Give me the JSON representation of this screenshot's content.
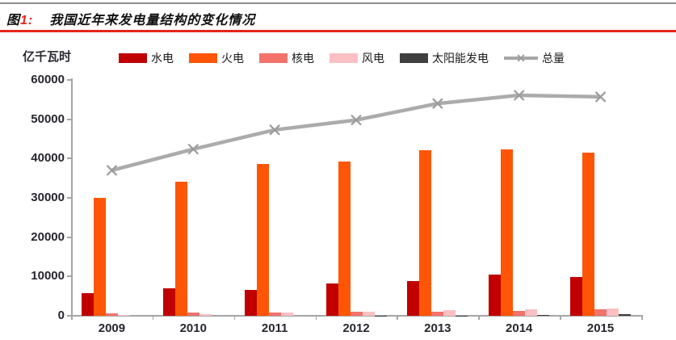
{
  "header": {
    "figure_label": "图",
    "figure_number": "1:",
    "title": "我国近年来发电量结构的变化情况"
  },
  "chart_data": {
    "type": "bar",
    "subtype": "grouped bars with total line overlay",
    "title": "我国近年来发电量结构的变化情况",
    "unit_label": "亿千瓦时",
    "categories": [
      "2009",
      "2010",
      "2011",
      "2012",
      "2013",
      "2014",
      "2015"
    ],
    "series": [
      {
        "name": "水电",
        "type": "bar",
        "color": "#c00000",
        "values": [
          5700,
          6900,
          6500,
          8300,
          8800,
          10500,
          9950
        ]
      },
      {
        "name": "火电",
        "type": "bar",
        "color": "#ff5506",
        "values": [
          30000,
          34200,
          38700,
          39150,
          42100,
          42250,
          41600
        ]
      },
      {
        "name": "核电",
        "type": "bar",
        "color": "#f3726c",
        "values": [
          700,
          750,
          870,
          980,
          1110,
          1300,
          1650
        ]
      },
      {
        "name": "风电",
        "type": "bar",
        "color": "#fac0c3",
        "values": [
          280,
          500,
          740,
          1030,
          1400,
          1600,
          1800
        ]
      },
      {
        "name": "太阳能发电",
        "type": "bar",
        "color": "#3f3f3f",
        "values": [
          0,
          0,
          10,
          40,
          90,
          240,
          390
        ]
      },
      {
        "name": "总量",
        "type": "line",
        "color": "#ababab",
        "marker": "x",
        "values": [
          37000,
          42400,
          47300,
          49800,
          54000,
          56100,
          55700
        ]
      }
    ],
    "ylim": [
      0,
      60000
    ],
    "ytick_step": 10000,
    "yticks": [
      "0",
      "10000",
      "20000",
      "30000",
      "40000",
      "50000",
      "60000"
    ],
    "xlabel": "",
    "ylabel": "亿千瓦时",
    "legend_position": "top",
    "grid": false
  },
  "colors": {
    "top_rule": "#8f8f8f",
    "red_rule": "#e8241a",
    "title_accent": "#e8241a",
    "axis": "#a6a6a6",
    "tick_label": "#26262e",
    "line_marker": "#9c9c9c"
  }
}
